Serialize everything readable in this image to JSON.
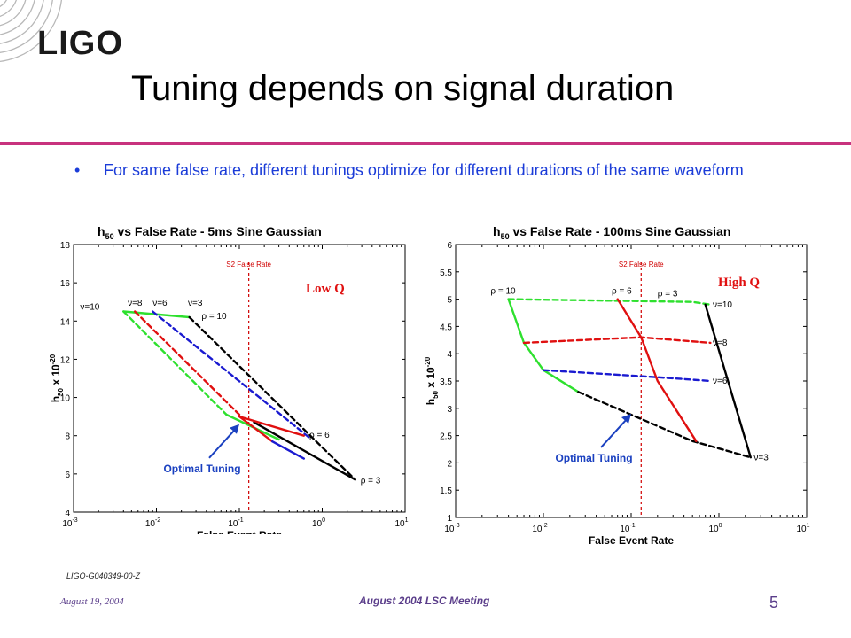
{
  "header": {
    "logo": "LIGO",
    "title": "Tuning depends on signal duration"
  },
  "bullet": {
    "text": "For same false rate, different tunings optimize for different durations of the same waveform"
  },
  "colors": {
    "accent_rule": "#c8327e",
    "bullet_text": "#1b3cd8",
    "footer": "#5a3d8a",
    "green": "#2ee02e",
    "red": "#e01010",
    "blue": "#1a1ad0",
    "black": "#000000",
    "annotation": "#1a40c0",
    "q_label": "#e01010"
  },
  "footer": {
    "doc_id": "LIGO-G040349-00-Z",
    "date": "August 19, 2004",
    "meeting": "August 2004 LSC Meeting",
    "page": "5"
  },
  "chart_data": [
    {
      "type": "line",
      "title_prefix": "h",
      "title_sub": "50",
      "title_rest": " vs False Rate - 5ms Sine Gaussian",
      "xlabel": "False Event Rate",
      "ylabel_main": "h",
      "ylabel_sub": "50",
      "ylabel_rest": " x 10",
      "ylabel_exp": "-20",
      "x_scale": "log",
      "xlim_exp": [
        -3,
        1
      ],
      "ylim": [
        4,
        18
      ],
      "yticks": [
        4,
        6,
        8,
        10,
        12,
        14,
        16,
        18
      ],
      "xticks": [
        {
          "base": "10",
          "exp": "-3"
        },
        {
          "base": "10",
          "exp": "-2"
        },
        {
          "base": "10",
          "exp": "-1"
        },
        {
          "base": "10",
          "exp": "0"
        },
        {
          "base": "10",
          "exp": "1"
        }
      ],
      "vline": {
        "x": 0.13,
        "label": "S2 False Rate"
      },
      "q_label": "Low Q",
      "annotation": {
        "text": "Optimal Tuning",
        "arrow_to": [
          0.1,
          8.6
        ]
      },
      "series": [
        {
          "color": "green",
          "style": "solid",
          "points": [
            [
              0.004,
              14.5
            ],
            [
              0.025,
              14.2
            ]
          ]
        },
        {
          "color": "black",
          "style": "solid",
          "points": [
            [
              0.15,
              8.7
            ],
            [
              2.5,
              5.7
            ]
          ]
        },
        {
          "color": "red",
          "style": "solid",
          "points": [
            [
              0.1,
              9.0
            ],
            [
              0.6,
              8.0
            ]
          ]
        },
        {
          "color": "green",
          "style": "dashed",
          "points": [
            [
              0.004,
              14.5
            ],
            [
              0.07,
              9.1
            ]
          ]
        },
        {
          "color": "red",
          "style": "dashed",
          "points": [
            [
              0.0055,
              14.5
            ],
            [
              0.1,
              9.1
            ]
          ]
        },
        {
          "color": "blue",
          "style": "dashed",
          "points": [
            [
              0.009,
              14.5
            ],
            [
              0.7,
              7.9
            ]
          ]
        },
        {
          "color": "black",
          "style": "dashed",
          "points": [
            [
              0.025,
              14.2
            ],
            [
              2.5,
              5.7
            ]
          ]
        },
        {
          "color": "green",
          "style": "solid",
          "points": [
            [
              0.07,
              9.1
            ],
            [
              0.3,
              7.8
            ]
          ]
        },
        {
          "color": "red",
          "style": "solid",
          "points": [
            [
              0.1,
              9.0
            ],
            [
              0.25,
              7.7
            ]
          ]
        },
        {
          "color": "blue",
          "style": "solid",
          "points": [
            [
              0.25,
              7.7
            ],
            [
              0.6,
              6.8
            ]
          ]
        }
      ],
      "labels": [
        {
          "text": "ν=10",
          "x": 0.0012,
          "y": 14.6
        },
        {
          "text": "ν=8",
          "x": 0.0045,
          "y": 14.8
        },
        {
          "text": "ν=6",
          "x": 0.009,
          "y": 14.8
        },
        {
          "text": "ν=3",
          "x": 0.024,
          "y": 14.8
        },
        {
          "text": "ρ = 10",
          "x": 0.035,
          "y": 14.1
        },
        {
          "text": "ρ = 6",
          "x": 0.7,
          "y": 7.9
        },
        {
          "text": "ρ = 3",
          "x": 2.9,
          "y": 5.5
        }
      ]
    },
    {
      "type": "line",
      "title_prefix": "h",
      "title_sub": "50",
      "title_rest": " vs False Rate - 100ms Sine Gaussian",
      "xlabel": "False Event Rate",
      "ylabel_main": "h",
      "ylabel_sub": "50",
      "ylabel_rest": " x 10",
      "ylabel_exp": "-20",
      "x_scale": "log",
      "xlim_exp": [
        -3,
        1
      ],
      "ylim": [
        1,
        6
      ],
      "yticks": [
        1,
        1.5,
        2,
        2.5,
        3,
        3.5,
        4,
        4.5,
        5,
        5.5,
        6
      ],
      "xticks": [
        {
          "base": "10",
          "exp": "-3"
        },
        {
          "base": "10",
          "exp": "-2"
        },
        {
          "base": "10",
          "exp": "-1"
        },
        {
          "base": "10",
          "exp": "0"
        },
        {
          "base": "10",
          "exp": "1"
        }
      ],
      "vline": {
        "x": 0.13,
        "label": "S2 False Rate"
      },
      "q_label": "High Q",
      "annotation": {
        "text": "Optimal Tuning",
        "arrow_to": [
          0.1,
          2.9
        ]
      },
      "series": [
        {
          "color": "green",
          "style": "solid",
          "points": [
            [
              0.004,
              5.0
            ],
            [
              0.006,
              4.2
            ],
            [
              0.01,
              3.7
            ],
            [
              0.025,
              3.3
            ]
          ]
        },
        {
          "color": "green",
          "style": "dashed",
          "points": [
            [
              0.004,
              5.0
            ],
            [
              0.5,
              4.95
            ],
            [
              0.8,
              4.9
            ]
          ]
        },
        {
          "color": "red",
          "style": "dashed",
          "points": [
            [
              0.006,
              4.2
            ],
            [
              0.13,
              4.3
            ],
            [
              0.8,
              4.2
            ]
          ]
        },
        {
          "color": "blue",
          "style": "dashed",
          "points": [
            [
              0.01,
              3.7
            ],
            [
              0.3,
              3.55
            ],
            [
              0.8,
              3.5
            ]
          ]
        },
        {
          "color": "black",
          "style": "dashed",
          "points": [
            [
              0.025,
              3.3
            ],
            [
              0.5,
              2.4
            ],
            [
              2.3,
              2.1
            ]
          ]
        },
        {
          "color": "red",
          "style": "solid",
          "points": [
            [
              0.07,
              5.0
            ],
            [
              0.13,
              4.3
            ],
            [
              0.2,
              3.5
            ],
            [
              0.55,
              2.4
            ]
          ]
        },
        {
          "color": "black",
          "style": "solid",
          "points": [
            [
              0.7,
              4.9
            ],
            [
              2.3,
              2.1
            ]
          ]
        }
      ],
      "labels": [
        {
          "text": "ρ = 10",
          "x": 0.0025,
          "y": 5.1
        },
        {
          "text": "ρ = 6",
          "x": 0.06,
          "y": 5.1
        },
        {
          "text": "ρ = 3",
          "x": 0.2,
          "y": 5.05
        },
        {
          "text": "ν=10",
          "x": 0.85,
          "y": 4.85
        },
        {
          "text": "ν=8",
          "x": 0.85,
          "y": 4.15
        },
        {
          "text": "ν=6",
          "x": 0.85,
          "y": 3.45
        },
        {
          "text": "ν=3",
          "x": 2.5,
          "y": 2.05
        }
      ]
    }
  ]
}
